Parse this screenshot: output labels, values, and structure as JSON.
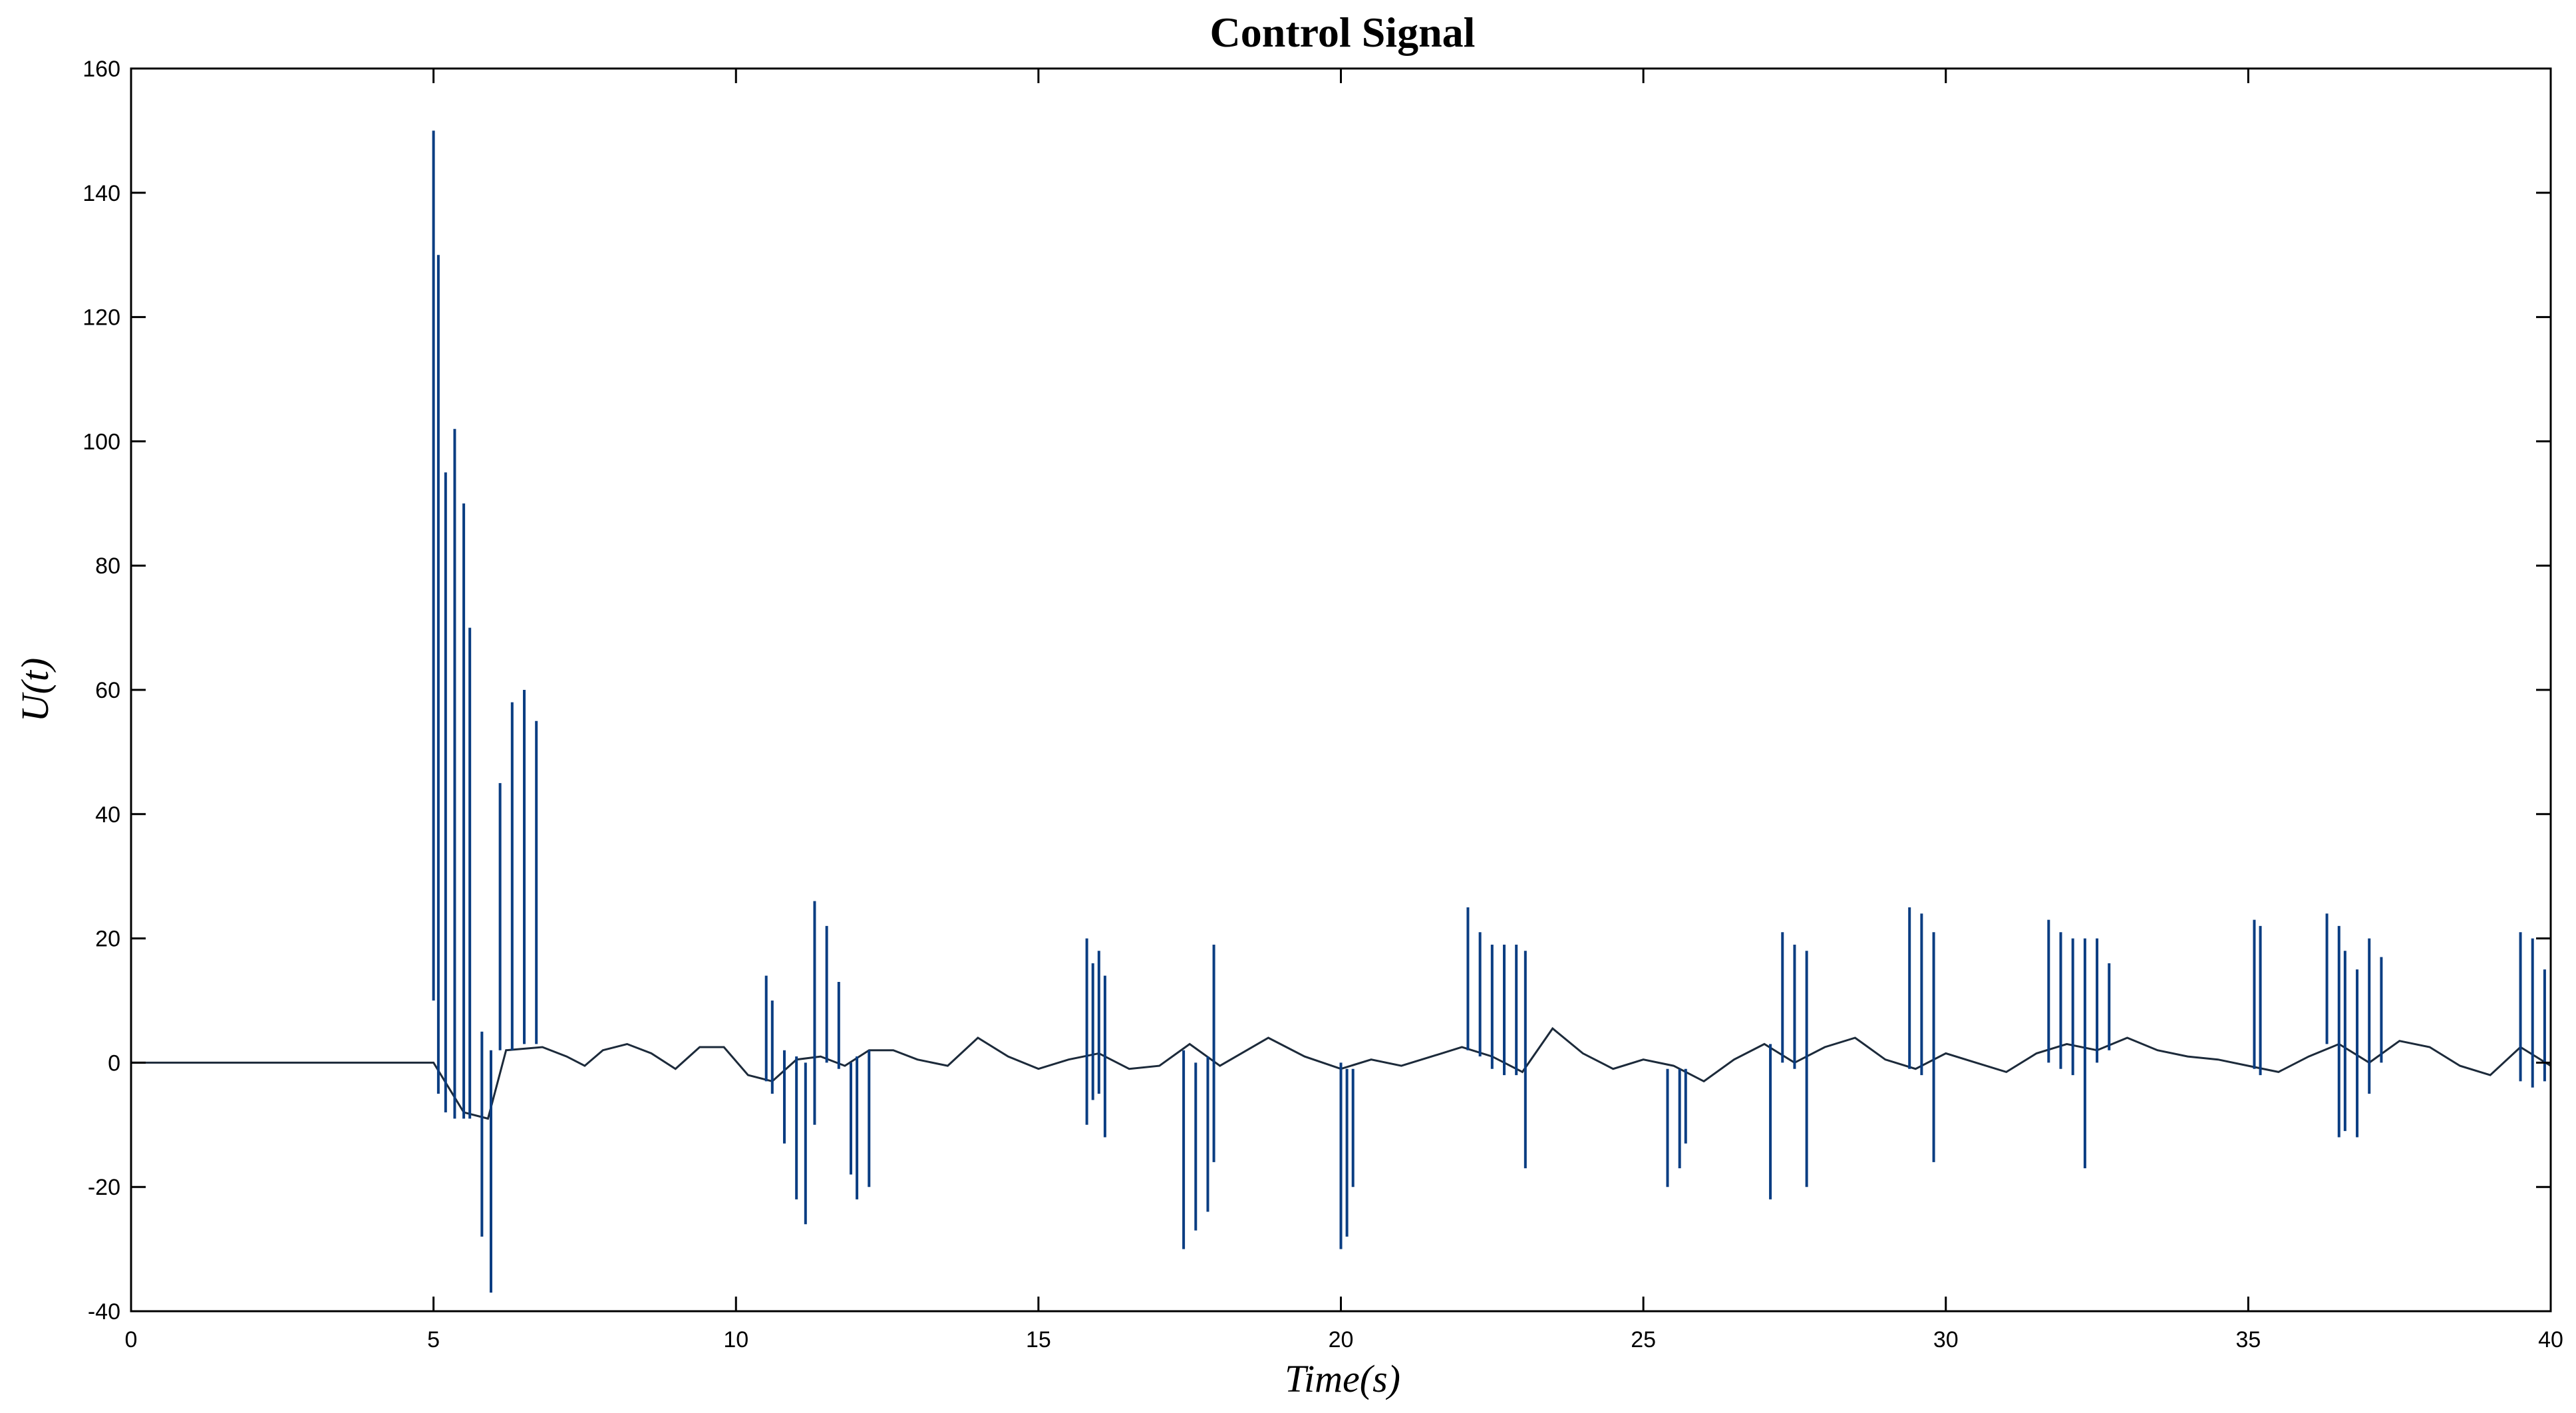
{
  "chart_data": {
    "type": "line",
    "title": "Control Signal",
    "xlabel": "Time(s)",
    "ylabel": "U(t)",
    "xlim": [
      0,
      40
    ],
    "ylim": [
      -40,
      160
    ],
    "xticks": [
      0,
      5,
      10,
      15,
      20,
      25,
      30,
      35,
      40
    ],
    "yticks": [
      -40,
      -20,
      0,
      20,
      40,
      60,
      80,
      100,
      120,
      140,
      160
    ],
    "grid": false,
    "series": [
      {
        "baseline": [
          [
            0,
            0
          ],
          [
            5,
            0
          ],
          [
            5.5,
            -8
          ],
          [
            5.9,
            -9
          ],
          [
            6.2,
            2
          ],
          [
            6.8,
            2.5
          ],
          [
            7.2,
            1
          ],
          [
            7.5,
            -0.5
          ],
          [
            7.8,
            2
          ],
          [
            8.2,
            3
          ],
          [
            8.6,
            1.5
          ],
          [
            9.0,
            -1
          ],
          [
            9.4,
            2.5
          ],
          [
            9.8,
            2.5
          ],
          [
            10.2,
            -2
          ],
          [
            10.6,
            -3
          ],
          [
            11.0,
            0.5
          ],
          [
            11.4,
            1
          ],
          [
            11.8,
            -0.5
          ],
          [
            12.2,
            2
          ],
          [
            12.6,
            2
          ],
          [
            13.0,
            0.5
          ],
          [
            13.5,
            -0.5
          ],
          [
            14.0,
            4
          ],
          [
            14.5,
            1
          ],
          [
            15.0,
            -1
          ],
          [
            15.5,
            0.5
          ],
          [
            16.0,
            1.5
          ],
          [
            16.5,
            -1
          ],
          [
            17.0,
            -0.5
          ],
          [
            17.5,
            3
          ],
          [
            18.0,
            -0.5
          ],
          [
            18.8,
            4
          ],
          [
            19.4,
            1
          ],
          [
            20.0,
            -1
          ],
          [
            20.5,
            0.5
          ],
          [
            21.0,
            -0.5
          ],
          [
            21.5,
            1
          ],
          [
            22.0,
            2.5
          ],
          [
            22.5,
            1
          ],
          [
            23.0,
            -1.5
          ],
          [
            23.5,
            5.5
          ],
          [
            24.0,
            1.5
          ],
          [
            24.5,
            -1
          ],
          [
            25.0,
            0.5
          ],
          [
            25.5,
            -0.5
          ],
          [
            26.0,
            -3
          ],
          [
            26.5,
            0.5
          ],
          [
            27.0,
            3
          ],
          [
            27.5,
            0
          ],
          [
            28.0,
            2.5
          ],
          [
            28.5,
            4
          ],
          [
            29.0,
            0.5
          ],
          [
            29.5,
            -1
          ],
          [
            30.0,
            1.5
          ],
          [
            30.5,
            0
          ],
          [
            31.0,
            -1.5
          ],
          [
            31.5,
            1.5
          ],
          [
            32.0,
            3
          ],
          [
            32.5,
            2
          ],
          [
            33.0,
            4
          ],
          [
            33.5,
            2
          ],
          [
            34.0,
            1
          ],
          [
            34.5,
            0.5
          ],
          [
            35.0,
            -0.5
          ],
          [
            35.5,
            -1.5
          ],
          [
            36.0,
            1
          ],
          [
            36.5,
            3
          ],
          [
            37.0,
            0
          ],
          [
            37.5,
            3.5
          ],
          [
            38.0,
            2.5
          ],
          [
            38.5,
            -0.5
          ],
          [
            39.0,
            -2
          ],
          [
            39.5,
            2.5
          ],
          [
            40.0,
            -0.5
          ]
        ],
        "bursts": [
          [
            5.0,
            150,
            10
          ],
          [
            5.08,
            130,
            -5
          ],
          [
            5.2,
            95,
            -8
          ],
          [
            5.35,
            102,
            -9
          ],
          [
            5.5,
            90,
            -9
          ],
          [
            5.6,
            70,
            -9
          ],
          [
            5.8,
            5,
            -28
          ],
          [
            5.95,
            2,
            -37
          ],
          [
            6.1,
            45,
            2
          ],
          [
            6.3,
            58,
            2
          ],
          [
            6.5,
            60,
            3
          ],
          [
            6.7,
            55,
            3
          ],
          [
            10.5,
            14,
            -3
          ],
          [
            10.6,
            10,
            -5
          ],
          [
            10.8,
            2,
            -13
          ],
          [
            11.0,
            1,
            -22
          ],
          [
            11.15,
            0,
            -26
          ],
          [
            11.3,
            26,
            -10
          ],
          [
            11.5,
            22,
            0
          ],
          [
            11.7,
            13,
            -1
          ],
          [
            11.9,
            0,
            -18
          ],
          [
            12.0,
            1,
            -22
          ],
          [
            12.2,
            2,
            -20
          ],
          [
            15.8,
            20,
            -10
          ],
          [
            15.9,
            16,
            -6
          ],
          [
            16.0,
            18,
            -5
          ],
          [
            16.1,
            14,
            -12
          ],
          [
            17.4,
            2,
            -30
          ],
          [
            17.6,
            0,
            -27
          ],
          [
            17.8,
            1,
            -24
          ],
          [
            17.9,
            19,
            -16
          ],
          [
            20.0,
            0,
            -30
          ],
          [
            20.1,
            -1,
            -28
          ],
          [
            20.2,
            -1,
            -20
          ],
          [
            22.1,
            25,
            2
          ],
          [
            22.3,
            21,
            1
          ],
          [
            22.5,
            19,
            -1
          ],
          [
            22.7,
            19,
            -2
          ],
          [
            22.9,
            19,
            -2
          ],
          [
            23.05,
            18,
            -17
          ],
          [
            25.4,
            -1,
            -20
          ],
          [
            25.6,
            -1,
            -17
          ],
          [
            25.7,
            -1,
            -13
          ],
          [
            27.1,
            3,
            -22
          ],
          [
            27.3,
            21,
            0
          ],
          [
            27.5,
            19,
            -1
          ],
          [
            27.7,
            18,
            -20
          ],
          [
            29.4,
            25,
            -1
          ],
          [
            29.6,
            24,
            -2
          ],
          [
            29.8,
            21,
            -16
          ],
          [
            31.7,
            23,
            0
          ],
          [
            31.9,
            21,
            -1
          ],
          [
            32.1,
            20,
            -2
          ],
          [
            32.3,
            20,
            -17
          ],
          [
            32.5,
            20,
            0
          ],
          [
            32.7,
            16,
            2
          ],
          [
            35.1,
            23,
            -1
          ],
          [
            35.2,
            22,
            -2
          ],
          [
            36.3,
            24,
            3
          ],
          [
            36.5,
            22,
            -12
          ],
          [
            36.6,
            18,
            -11
          ],
          [
            36.8,
            15,
            -12
          ],
          [
            37.0,
            20,
            -5
          ],
          [
            37.2,
            17,
            0
          ],
          [
            39.5,
            21,
            -3
          ],
          [
            39.7,
            20,
            -4
          ],
          [
            39.9,
            15,
            -3
          ]
        ]
      }
    ]
  }
}
